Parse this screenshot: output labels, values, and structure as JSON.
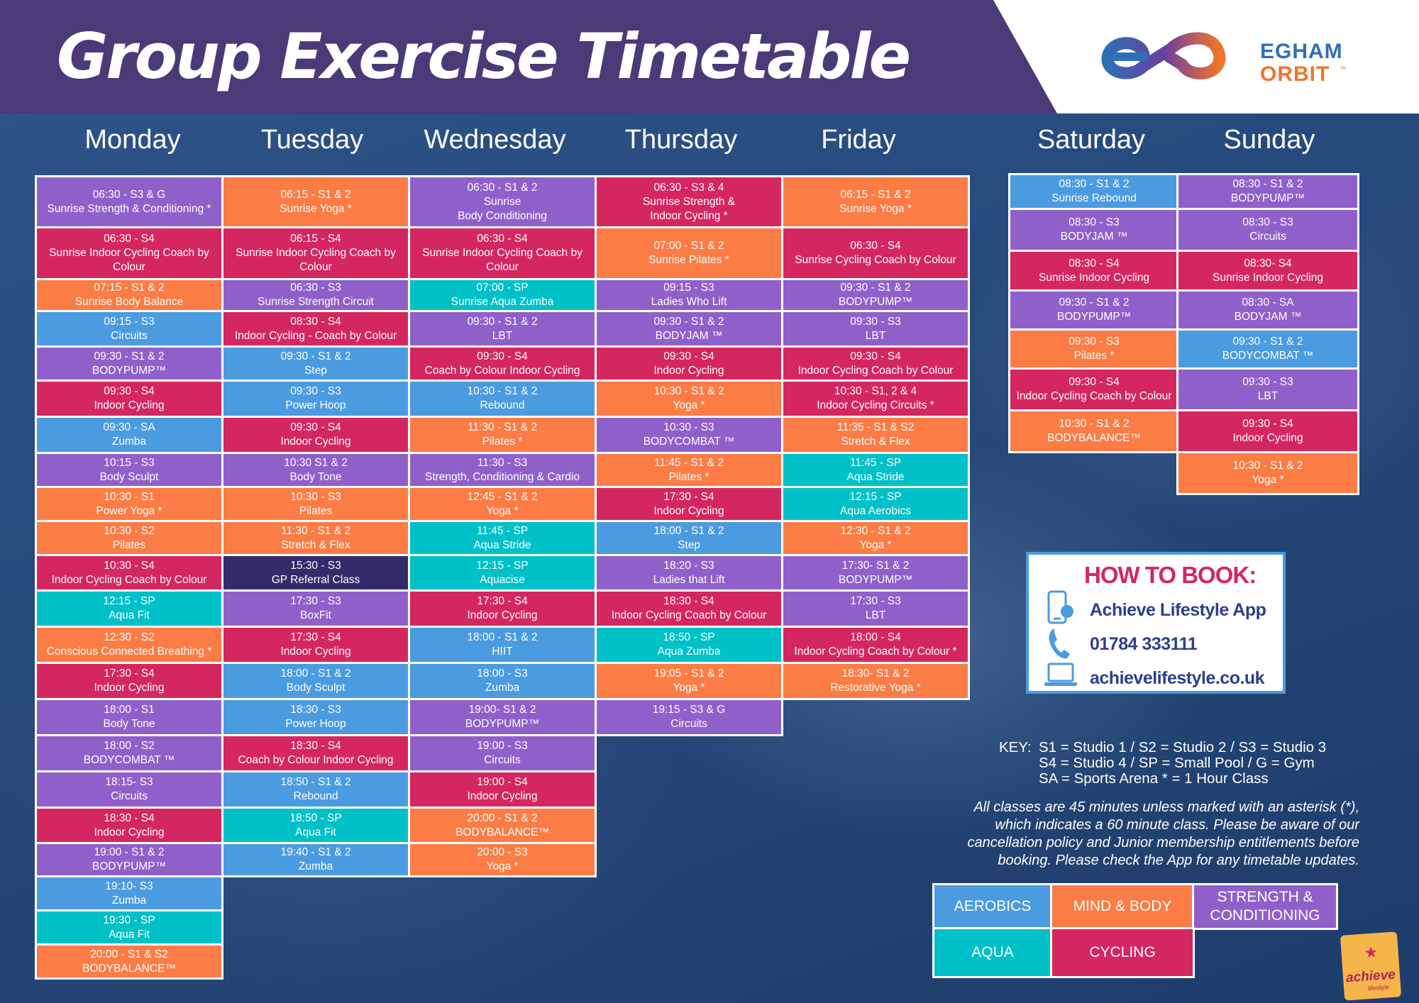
{
  "title": "Group Exercise Timetable",
  "logo": {
    "word1": "EGHAM",
    "word2": "ORBIT",
    "tm": "™"
  },
  "days": [
    {
      "name": "Monday",
      "classes": [
        {
          "l1": "06:30 - S3 & G",
          "l2": "Sunrise Strength & Conditioning *",
          "cat": "strength",
          "h": 69
        },
        {
          "l1": "06:30 - S4",
          "l2": "Sunrise Indoor Cycling Coach by",
          "l3": "Colour",
          "cat": "cycling",
          "h": 70
        },
        {
          "l1": "07:15 - S1 & 2",
          "l2": "Sunrise Body Balance",
          "cat": "mind",
          "h": 42
        },
        {
          "l1": "09:15 - S3",
          "l2": "Circuits",
          "cat": "aerobics",
          "h": 47
        },
        {
          "l1": "09:30 - S1 & 2",
          "l2": "BODYPUMP™",
          "cat": "strength",
          "h": 45
        },
        {
          "l1": "09:30 -  S4",
          "l2": "Indoor Cycling",
          "cat": "cycling",
          "h": 48
        },
        {
          "l1": "09:30 - SA",
          "l2": "Zumba",
          "cat": "aerobics",
          "h": 48
        },
        {
          "l1": "10:15 - S3",
          "l2": "Body Sculpt",
          "cat": "strength",
          "h": 45
        },
        {
          "l1": "10:30 - S1",
          "l2": "Power Yoga *",
          "cat": "mind",
          "h": 45
        },
        {
          "l1": "10:30 - S2",
          "l2": "Pilates",
          "cat": "mind",
          "h": 45
        },
        {
          "l1": "10:30 - S4",
          "l2": "Indoor Cycling Coach by Colour",
          "cat": "cycling",
          "h": 47
        },
        {
          "l1": "12:15 - SP",
          "l2": "Aqua Fit",
          "cat": "aqua",
          "h": 48
        },
        {
          "l1": "12:30 - S2",
          "l2": "Conscious Connected Breathing *",
          "cat": "mind",
          "h": 48
        },
        {
          "l1": "17:30 - S4",
          "l2": "Indoor Cycling",
          "cat": "cycling",
          "h": 48
        },
        {
          "l1": "18:00 - S1",
          "l2": "Body Tone",
          "cat": "strength",
          "h": 48
        },
        {
          "l1": "18:00 - S2",
          "l2": "BODYCOMBAT ™",
          "cat": "strength",
          "h": 48
        },
        {
          "l1": "18:15- S3",
          "l2": "Circuits",
          "cat": "strength",
          "h": 48
        },
        {
          "l1": "18:30 - S4",
          "l2": "Indoor Cycling",
          "cat": "cycling",
          "h": 47
        },
        {
          "l1": "19:00 - S1 & 2",
          "l2": "BODYPUMP™",
          "cat": "strength",
          "h": 44
        },
        {
          "l1": "19:10- S3",
          "l2": "Zumba",
          "cat": "aerobics",
          "h": 45
        },
        {
          "l1": "19:30 - SP",
          "l2": "Aqua Fit",
          "cat": "aqua",
          "h": 45
        },
        {
          "l1": "20:00 - S1 & S2",
          "l2": "BODYBALANCE™",
          "cat": "mind",
          "h": 45
        }
      ]
    },
    {
      "name": "Tuesday",
      "classes": [
        {
          "l1": "06:15 - S1 & 2",
          "l2": "Sunrise Yoga *",
          "cat": "mind",
          "h": 69
        },
        {
          "l1": "06:15 - S4",
          "l2": "Sunrise Indoor Cycling Coach by",
          "l3": "Colour",
          "cat": "cycling",
          "h": 70
        },
        {
          "l1": "06:30 - S3",
          "l2": "Sunrise Strength Circuit",
          "cat": "strength",
          "h": 42
        },
        {
          "l1": "08:30 - S4",
          "l2": "Indoor Cycling - Coach by Colour",
          "cat": "cycling",
          "h": 47
        },
        {
          "l1": "09:30 - S1 & 2",
          "l2": "Step",
          "cat": "aerobics",
          "h": 45
        },
        {
          "l1": "09:30 - S3",
          "l2": "Power Hoop",
          "cat": "aerobics",
          "h": 48
        },
        {
          "l1": "09:30 - S4",
          "l2": "Indoor Cycling",
          "cat": "cycling",
          "h": 48
        },
        {
          "l1": "10:30 S1 & 2",
          "l2": "Body Tone",
          "cat": "strength",
          "h": 45
        },
        {
          "l1": "10:30 - S3",
          "l2": "Pilates",
          "cat": "mind",
          "h": 45
        },
        {
          "l1": "11:30 - S1 & 2",
          "l2": "Stretch & Flex",
          "cat": "mind",
          "h": 45
        },
        {
          "l1": "15:30 - S3",
          "l2": "GP Referral Class",
          "cat": "gp",
          "h": 47
        },
        {
          "l1": "17:30 - S3",
          "l2": "BoxFit",
          "cat": "strength",
          "h": 48
        },
        {
          "l1": "17:30 - S4",
          "l2": "Indoor Cycling",
          "cat": "cycling",
          "h": 48
        },
        {
          "l1": "18:00 - S1 & 2",
          "l2": "Body Sculpt",
          "cat": "aerobics",
          "h": 48
        },
        {
          "l1": "18:30 - S3",
          "l2": "Power Hoop",
          "cat": "aerobics",
          "h": 48
        },
        {
          "l1": "18:30 - S4",
          "l2": "Coach by Colour Indoor Cycling",
          "cat": "cycling",
          "h": 48
        },
        {
          "l1": "18:50 - S1 & 2",
          "l2": "Rebound",
          "cat": "aerobics",
          "h": 48
        },
        {
          "l1": "18:50 - SP",
          "l2": "Aqua Fit",
          "cat": "aqua",
          "h": 47
        },
        {
          "l1": "19:40 - S1 & 2",
          "l2": "Zumba",
          "cat": "aerobics",
          "h": 44
        }
      ]
    },
    {
      "name": "Wednesday",
      "classes": [
        {
          "l1": "06:30 - S1 & 2",
          "l2": "Sunrise",
          "l3": "Body Conditioning",
          "cat": "strength",
          "h": 69
        },
        {
          "l1": "06:30 - S4",
          "l2": "Sunrise Indoor Cycling Coach by",
          "l3": "Colour",
          "cat": "cycling",
          "h": 70
        },
        {
          "l1": "07:00 - SP",
          "l2": "Sunrise Aqua Zumba",
          "cat": "aqua",
          "h": 42
        },
        {
          "l1": "09:30 - S1 & 2",
          "l2": "LBT",
          "cat": "strength",
          "h": 47
        },
        {
          "l1": "09:30 - S4",
          "l2": "Coach by Colour Indoor Cycling",
          "cat": "cycling",
          "h": 45
        },
        {
          "l1": "10:30 - S1 & 2",
          "l2": "Rebound",
          "cat": "aerobics",
          "h": 48
        },
        {
          "l1": "11:30 - S1 & 2",
          "l2": "Pilates *",
          "cat": "mind",
          "h": 48
        },
        {
          "l1": "11:30 - S3",
          "l2": "Strength, Conditioning & Cardio",
          "cat": "strength",
          "h": 45
        },
        {
          "l1": "12:45 - S1 & 2",
          "l2": "Yoga *",
          "cat": "mind",
          "h": 45
        },
        {
          "l1": "11:45 - SP",
          "l2": "Aqua Stride",
          "cat": "aqua",
          "h": 45
        },
        {
          "l1": "12:15 - SP",
          "l2": "Aquacise",
          "cat": "aqua",
          "h": 47
        },
        {
          "l1": "17:30 - S4",
          "l2": "Indoor Cycling",
          "cat": "cycling",
          "h": 48
        },
        {
          "l1": "18:00 - S1 & 2",
          "l2": "HIIT",
          "cat": "aerobics",
          "h": 48
        },
        {
          "l1": "18:00 - S3",
          "l2": "Zumba",
          "cat": "aerobics",
          "h": 48
        },
        {
          "l1": "19:00- S1 & 2",
          "l2": "BODYPUMP™",
          "cat": "strength",
          "h": 48
        },
        {
          "l1": "19:00 - S3",
          "l2": "Circuits",
          "cat": "strength",
          "h": 48
        },
        {
          "l1": "19:00 - S4",
          "l2": "Indoor Cycling",
          "cat": "cycling",
          "h": 48
        },
        {
          "l1": "20:00 - S1 & 2",
          "l2": "BODYBALANCE™",
          "cat": "mind",
          "h": 47
        },
        {
          "l1": "20:00 - S3",
          "l2": "Yoga *",
          "cat": "mind",
          "h": 44
        }
      ]
    },
    {
      "name": "Thursday",
      "classes": [
        {
          "l1": "06:30 - S3 & 4",
          "l2": "Sunrise Strength &",
          "l3": "Indoor Cycling *",
          "cat": "cycling",
          "h": 69
        },
        {
          "l1": "07:00 - S1 & 2",
          "l2": "Sunrise Pilates *",
          "cat": "mind",
          "h": 70
        },
        {
          "l1": "09:15 - S3",
          "l2": "Ladies Who Lift",
          "cat": "strength",
          "h": 42
        },
        {
          "l1": "09:30 - S1 & 2",
          "l2": "BODYJAM ™",
          "cat": "strength",
          "h": 47
        },
        {
          "l1": "09:30 - S4",
          "l2": "Indoor Cycling",
          "cat": "cycling",
          "h": 45
        },
        {
          "l1": "10:30 - S1 & 2",
          "l2": "Yoga *",
          "cat": "mind",
          "h": 48
        },
        {
          "l1": "10:30 - S3",
          "l2": "BODYCOMBAT ™",
          "cat": "strength",
          "h": 48
        },
        {
          "l1": "11:45 - S1 & 2",
          "l2": "Pilates *",
          "cat": "mind",
          "h": 45
        },
        {
          "l1": "17:30 - S4",
          "l2": "Indoor Cycling",
          "cat": "cycling",
          "h": 45
        },
        {
          "l1": "18:00 - S1 & 2",
          "l2": "Step",
          "cat": "aerobics",
          "h": 45
        },
        {
          "l1": "18:20 - S3",
          "l2": "Ladies that Lift",
          "cat": "strength",
          "h": 47
        },
        {
          "l1": "18:30 - S4",
          "l2": "Indoor Cycling  Coach by Colour",
          "cat": "cycling",
          "h": 48
        },
        {
          "l1": "18:50 - SP",
          "l2": "Aqua Zumba",
          "cat": "aqua",
          "h": 48
        },
        {
          "l1": "19:05 - S1 & 2",
          "l2": "Yoga *",
          "cat": "mind",
          "h": 48
        },
        {
          "l1": "19:15 - S3 & G",
          "l2": "Circuits",
          "cat": "strength",
          "h": 48
        }
      ]
    },
    {
      "name": "Friday",
      "classes": [
        {
          "l1": "06:15 - S1 & 2",
          "l2": "Sunrise Yoga *",
          "cat": "mind",
          "h": 69
        },
        {
          "l1": "06:30 - S4",
          "l2": "Sunrise Cycling Coach by Colour",
          "cat": "cycling",
          "h": 70
        },
        {
          "l1": "09:30 - S1 & 2",
          "l2": "BODYPUMP™",
          "cat": "strength",
          "h": 42
        },
        {
          "l1": "09:30 - S3",
          "l2": "LBT",
          "cat": "strength",
          "h": 47
        },
        {
          "l1": "09:30 - S4",
          "l2": "Indoor Cycling Coach by Colour",
          "cat": "cycling",
          "h": 45
        },
        {
          "l1": "10:30 - S1, 2 & 4",
          "l2": "Indoor Cycling Circuits *",
          "cat": "cycling",
          "h": 48
        },
        {
          "l1": "11:35 - S1 & S2",
          "l2": "Stretch & Flex",
          "cat": "mind",
          "h": 48
        },
        {
          "l1": "11:45 - SP",
          "l2": "Aqua Stride",
          "cat": "aqua",
          "h": 45
        },
        {
          "l1": "12:15 - SP",
          "l2": "Aqua Aerobics",
          "cat": "aqua",
          "h": 45
        },
        {
          "l1": "12:30 - S1 & 2",
          "l2": "Yoga *",
          "cat": "mind",
          "h": 45
        },
        {
          "l1": "17:30- S1 & 2",
          "l2": "BODYPUMP™",
          "cat": "strength",
          "h": 47
        },
        {
          "l1": "17:30 - S3",
          "l2": "LBT",
          "cat": "strength",
          "h": 48
        },
        {
          "l1": "18:00 - S4",
          "l2": "Indoor Cycling Coach by Colour *",
          "cat": "cycling",
          "h": 48
        },
        {
          "l1": "18:30- S1 & 2",
          "l2": "Restorative Yoga *",
          "cat": "mind",
          "h": 48
        }
      ]
    },
    {
      "name": "Saturday",
      "classes": [
        {
          "l1": "08:30 - S1 & 2",
          "l2": "Sunrise Rebound",
          "cat": "aerobics",
          "h": 46
        },
        {
          "l1": "08:30 - S3",
          "l2": "BODYJAM ™",
          "cat": "strength",
          "h": 56
        },
        {
          "l1": "08:30 - S4",
          "l2": "Sunrise Indoor Cycling",
          "cat": "cycling",
          "h": 53
        },
        {
          "l1": "09:30 - S1 & 2",
          "l2": "BODYPUMP™",
          "cat": "strength",
          "h": 52
        },
        {
          "l1": "09:30 - S3",
          "l2": "Pilates *",
          "cat": "mind",
          "h": 52
        },
        {
          "l1": "09:30 - S4",
          "l2": "Indoor Cycling Coach by Colour",
          "cat": "cycling",
          "h": 56
        },
        {
          "l1": "10:30 - S1 & 2",
          "l2": "BODYBALANCE™",
          "cat": "mind",
          "h": 56
        }
      ]
    },
    {
      "name": "Sunday",
      "classes": [
        {
          "l1": "08:30 - S1 & 2",
          "l2": "BODYPUMP™",
          "cat": "strength",
          "h": 46
        },
        {
          "l1": "08:30 - S3",
          "l2": "Circuits",
          "cat": "strength",
          "h": 56
        },
        {
          "l1": "08:30- S4",
          "l2": "Sunrise Indoor Cycling",
          "cat": "cycling",
          "h": 53
        },
        {
          "l1": "08:30 - SA",
          "l2": "BODYJAM ™",
          "cat": "strength",
          "h": 52
        },
        {
          "l1": "09:30 - S1 & 2",
          "l2": "BODYCOMBAT ™",
          "cat": "aerobics",
          "h": 52
        },
        {
          "l1": "09:30 - S3",
          "l2": "LBT",
          "cat": "strength",
          "h": 56
        },
        {
          "l1": "09:30 - S4",
          "l2": "Indoor Cycling",
          "cat": "cycling",
          "h": 56
        },
        {
          "l1": "10:30 - S1 & 2",
          "l2": "Yoga *",
          "cat": "mind",
          "h": 56
        }
      ]
    }
  ],
  "booking": {
    "title": "HOW TO BOOK:",
    "app": "Achieve Lifestyle App",
    "phone": "01784 333111",
    "web": "achievelifestyle.co.uk"
  },
  "key": {
    "label": "KEY:",
    "line1": "S1 = Studio 1 / S2 = Studio 2 / S3 = Studio 3",
    "line2": "S4 = Studio 4 / SP = Small Pool / G = Gym",
    "line3": "SA = Sports Arena  * = 1 Hour Class"
  },
  "notice": {
    "line1": "All classes are 45 minutes unless marked with an asterisk (*),",
    "line2": "which indicates a 60 minute class. Please be aware of our",
    "line3": "cancellation policy and Junior membership entitlements before",
    "line4": "booking. Please check the App for any timetable updates."
  },
  "legend": {
    "aerobics": "AEROBICS",
    "mind": "MIND & BODY",
    "strength_1": "STRENGTH &",
    "strength_2": "CONDITIONING",
    "aqua": "AQUA",
    "cycling": "CYCLING"
  },
  "badge": {
    "word": "achieve",
    "sub": "lifestyle"
  },
  "colors": {
    "aerobics": "#4b9be0",
    "mind_body": "#fb7c45",
    "strength_conditioning": "#9060ca",
    "aqua": "#00c0c8",
    "cycling": "#d4275f",
    "gp_referral": "#352a6a",
    "header": "#4a3a78"
  }
}
